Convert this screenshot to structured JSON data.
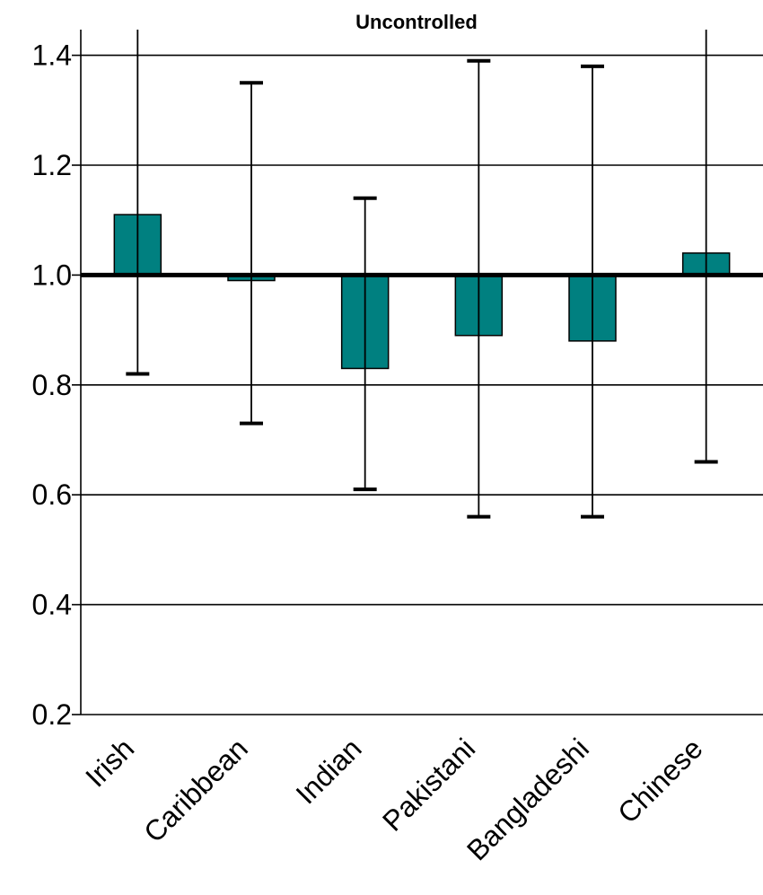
{
  "chart_data": {
    "type": "bar",
    "title": "Uncontrolled",
    "xlabel": "",
    "ylabel": "",
    "baseline": 1.0,
    "ylim": [
      0.2,
      1.45
    ],
    "yticks": [
      "0.2",
      "0.4",
      "0.6",
      "0.8",
      "1.0",
      "1.2",
      "1.4"
    ],
    "grid": true,
    "legend": "none",
    "categories": [
      "Irish",
      "Caribbean",
      "Indian",
      "Pakistani",
      "Bangladeshi",
      "Chinese"
    ],
    "values": [
      1.11,
      0.99,
      0.83,
      0.89,
      0.88,
      1.04
    ],
    "error_low": [
      0.82,
      0.73,
      0.61,
      0.56,
      0.56,
      0.66
    ],
    "error_high": [
      1.45,
      1.35,
      1.14,
      1.39,
      1.38,
      1.45
    ],
    "colors": {
      "bar": "#008080",
      "bar_edge": "#000000",
      "grid": "#000000",
      "baseline": "#000000",
      "error": "#000000"
    }
  }
}
